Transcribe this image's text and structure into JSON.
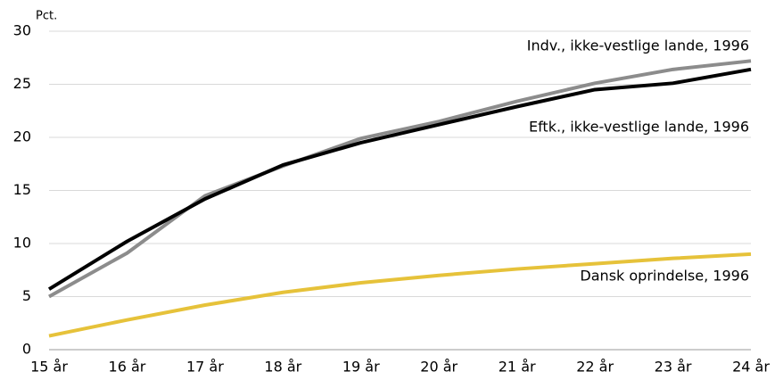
{
  "chart_data": {
    "type": "line",
    "y_axis_label": "Pct.",
    "categories": [
      "15 år",
      "16 år",
      "17 år",
      "18 år",
      "19 år",
      "20 år",
      "21 år",
      "22 år",
      "23 år",
      "24 år"
    ],
    "series": [
      {
        "name": "Indv., ikke-vestlige lande, 1996",
        "color": "#8c8c8c",
        "values": [
          5.0,
          9.1,
          14.5,
          17.3,
          19.9,
          21.5,
          23.4,
          25.1,
          26.4,
          27.2
        ]
      },
      {
        "name": "Eftk., ikke-vestlige lande, 1996",
        "color": "#000000",
        "values": [
          5.7,
          10.2,
          14.2,
          17.4,
          19.5,
          21.2,
          22.9,
          24.5,
          25.1,
          26.4
        ]
      },
      {
        "name": "Dansk oprindelse, 1996",
        "color": "#e6c23a",
        "values": [
          1.3,
          2.8,
          4.2,
          5.4,
          6.3,
          7.0,
          7.6,
          8.1,
          8.6,
          9.0
        ]
      }
    ],
    "ylim": [
      0,
      30
    ],
    "yticks": [
      0,
      5,
      10,
      15,
      20,
      25,
      30
    ],
    "grid": true
  }
}
